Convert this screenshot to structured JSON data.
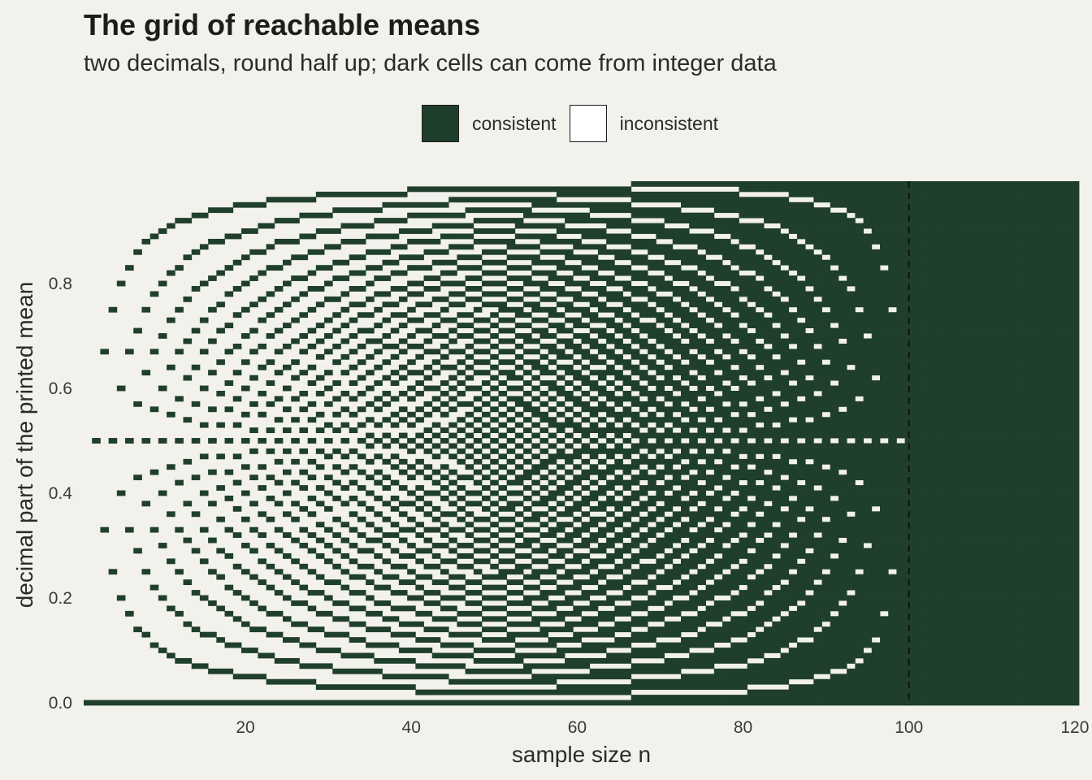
{
  "title": "The grid of reachable means",
  "subtitle": "two decimals, round half up; dark cells can come from integer data",
  "legend": [
    {
      "label": "consistent",
      "color": "#1f3f2c"
    },
    {
      "label": "inconsistent",
      "color": "#ffffff"
    }
  ],
  "chart_data": {
    "type": "heatmap",
    "title": "The grid of reachable means",
    "subtitle": "two decimals, round half up; dark cells can come from integer data",
    "xlabel": "sample size n",
    "ylabel": "decimal part of the printed mean",
    "x_range": [
      1,
      120
    ],
    "y_range": [
      0.0,
      0.99
    ],
    "y_step": 0.01,
    "decimals": 2,
    "rounding": "round half up",
    "x_ticks": [
      "20",
      "40",
      "60",
      "80",
      "100",
      "120"
    ],
    "y_ticks": [
      "0.0",
      "0.2",
      "0.4",
      "0.6",
      "0.8"
    ],
    "cell_rule": "cell (n, d) is consistent if some integer k gives round_half_up(k/n, 2) fractional part = d",
    "reference_line": {
      "x": 100,
      "style": "dashed"
    },
    "colors": {
      "consistent": "#1f3f2c",
      "inconsistent": "#ffffff"
    },
    "legend_position": "top",
    "grid": false
  }
}
